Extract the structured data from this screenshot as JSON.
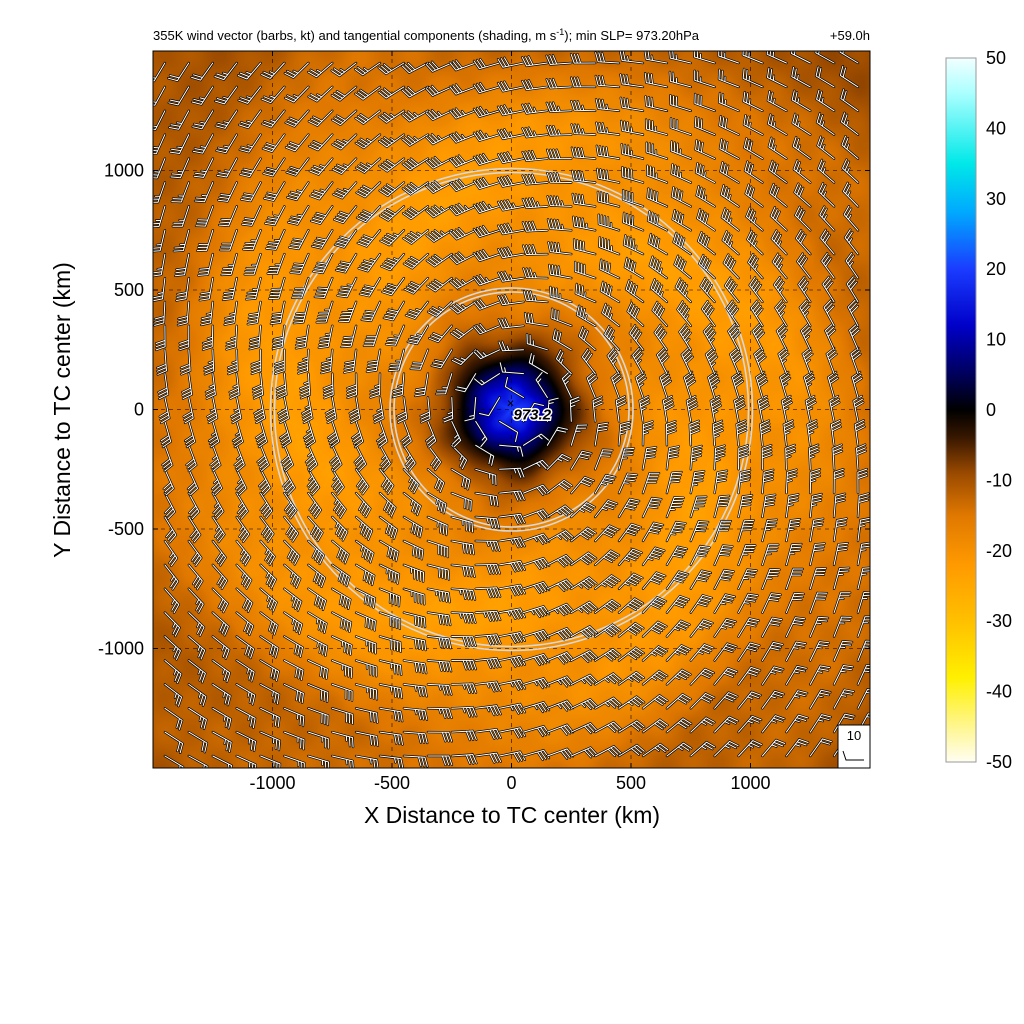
{
  "figure": {
    "title_main": "355K wind vector (barbs, kt) and tangential components (shading, m s",
    "title_unit_exp": "-1",
    "title_rest": "); min SLP= 973.20hPa",
    "forecast_time": "+59.0h",
    "center_marker": "×",
    "center_label": "973.2",
    "reference_barb_label": "10"
  },
  "chart_data": {
    "type": "heatmap",
    "xlabel": "X Distance to TC center (km)",
    "ylabel": "Y Distance to TC center (km)",
    "xlim": [
      -1500,
      1500
    ],
    "ylim": [
      -1500,
      1500
    ],
    "x_ticks": [
      -1000,
      -500,
      0,
      500,
      1000
    ],
    "y_ticks": [
      -1000,
      -500,
      0,
      500,
      1000
    ],
    "x_tick_labels": [
      "-1000",
      "-500",
      "0",
      "500",
      "1000"
    ],
    "y_tick_labels": [
      "-1000",
      "-500",
      "0",
      "500",
      "1000"
    ],
    "grid": true,
    "grid_style": "dashed",
    "range_rings_km": [
      500,
      1000
    ],
    "center": {
      "x": 0,
      "y": 0,
      "min_slp_hPa": 973.2
    },
    "colorbar": {
      "min": -50,
      "max": 50,
      "ticks": [
        50,
        40,
        30,
        20,
        10,
        0,
        -10,
        -20,
        -30,
        -40,
        -50
      ],
      "tick_labels": [
        "50",
        "40",
        "30",
        "20",
        "10",
        "0",
        "-10",
        "-20",
        "-30",
        "-40",
        "-50"
      ],
      "stops": [
        {
          "value": -50,
          "color": "#fffef2"
        },
        {
          "value": -45,
          "color": "#fff690"
        },
        {
          "value": -38,
          "color": "#fff000"
        },
        {
          "value": -30,
          "color": "#ffc000"
        },
        {
          "value": -22,
          "color": "#ff9a00"
        },
        {
          "value": -15,
          "color": "#e07800"
        },
        {
          "value": -9,
          "color": "#9a4a00"
        },
        {
          "value": -4,
          "color": "#3a1800"
        },
        {
          "value": 0,
          "color": "#000000"
        },
        {
          "value": 5,
          "color": "#00005a"
        },
        {
          "value": 12,
          "color": "#0000c8"
        },
        {
          "value": 20,
          "color": "#1a3cff"
        },
        {
          "value": 28,
          "color": "#00a8ff"
        },
        {
          "value": 35,
          "color": "#00e8e8"
        },
        {
          "value": 45,
          "color": "#aaffff"
        },
        {
          "value": 50,
          "color": "#f2ffff"
        }
      ]
    },
    "tangential_wind_profile": {
      "radius_km": [
        0,
        80,
        160,
        230,
        300,
        380,
        480,
        600,
        750,
        900,
        1050,
        1200,
        1350,
        1500,
        2200
      ],
      "value_m_s": [
        20,
        15,
        6,
        -3,
        -9,
        -14,
        -17,
        -19,
        -21,
        -22,
        -21,
        -20,
        -17,
        -14,
        -9
      ]
    },
    "wind_barbs": {
      "units": "kt",
      "grid_spacing_km": 100,
      "reference_speed_kt": 10,
      "flow": "anticyclonic",
      "speed_profile": {
        "radius_km": [
          0,
          200,
          400,
          600,
          800,
          1000,
          1200,
          1500,
          2200
        ],
        "speed_kt": [
          8,
          20,
          30,
          38,
          43,
          42,
          36,
          28,
          18
        ]
      }
    }
  }
}
